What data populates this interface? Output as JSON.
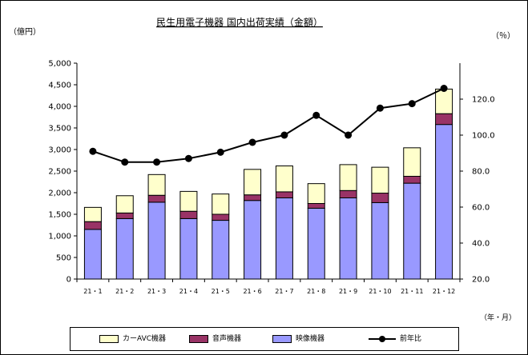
{
  "chart_data": {
    "type": "bar",
    "title": "民生用電子機器 国内出荷実績（金額）",
    "y_left_unit": "（億円）",
    "y_right_unit": "（％）",
    "x_unit": "（年・月）",
    "categories": [
      "21・1",
      "21・2",
      "21・3",
      "21・4",
      "21・5",
      "21・6",
      "21・7",
      "21・8",
      "21・9",
      "21・10",
      "21・11",
      "21・12"
    ],
    "ylim": [
      0,
      5000
    ],
    "y_ticks": [
      "0",
      "500",
      "1,000",
      "1,500",
      "2,000",
      "2,500",
      "3,000",
      "3,500",
      "4,000",
      "4,500",
      "5,000"
    ],
    "y2lim": [
      20,
      140
    ],
    "y2_ticks": [
      "20.0",
      "40.0",
      "60.0",
      "80.0",
      "100.0",
      "120.0"
    ],
    "stacked": true,
    "series": [
      {
        "name": "映像機器",
        "kind": "bar",
        "color": "#9999ff",
        "values": [
          1150,
          1400,
          1780,
          1400,
          1360,
          1820,
          1880,
          1640,
          1880,
          1770,
          2220,
          3580
        ]
      },
      {
        "name": "音声機器",
        "kind": "bar",
        "color": "#993366",
        "values": [
          180,
          130,
          160,
          170,
          140,
          130,
          140,
          110,
          170,
          220,
          160,
          250
        ]
      },
      {
        "name": "カーAVC機器",
        "kind": "bar",
        "color": "#ffffcc",
        "values": [
          330,
          400,
          480,
          460,
          470,
          590,
          600,
          460,
          600,
          600,
          660,
          570
        ]
      },
      {
        "name": "前年比",
        "kind": "line",
        "axis": "right",
        "color": "#000000",
        "values": [
          91,
          85,
          85,
          87,
          90.5,
          96,
          100,
          111,
          100,
          115,
          117.5,
          126
        ]
      }
    ],
    "legend": {
      "position": "bottom",
      "entries": [
        "カーAVC機器",
        "音声機器",
        "映像機器",
        "前年比"
      ]
    },
    "grid": false
  }
}
